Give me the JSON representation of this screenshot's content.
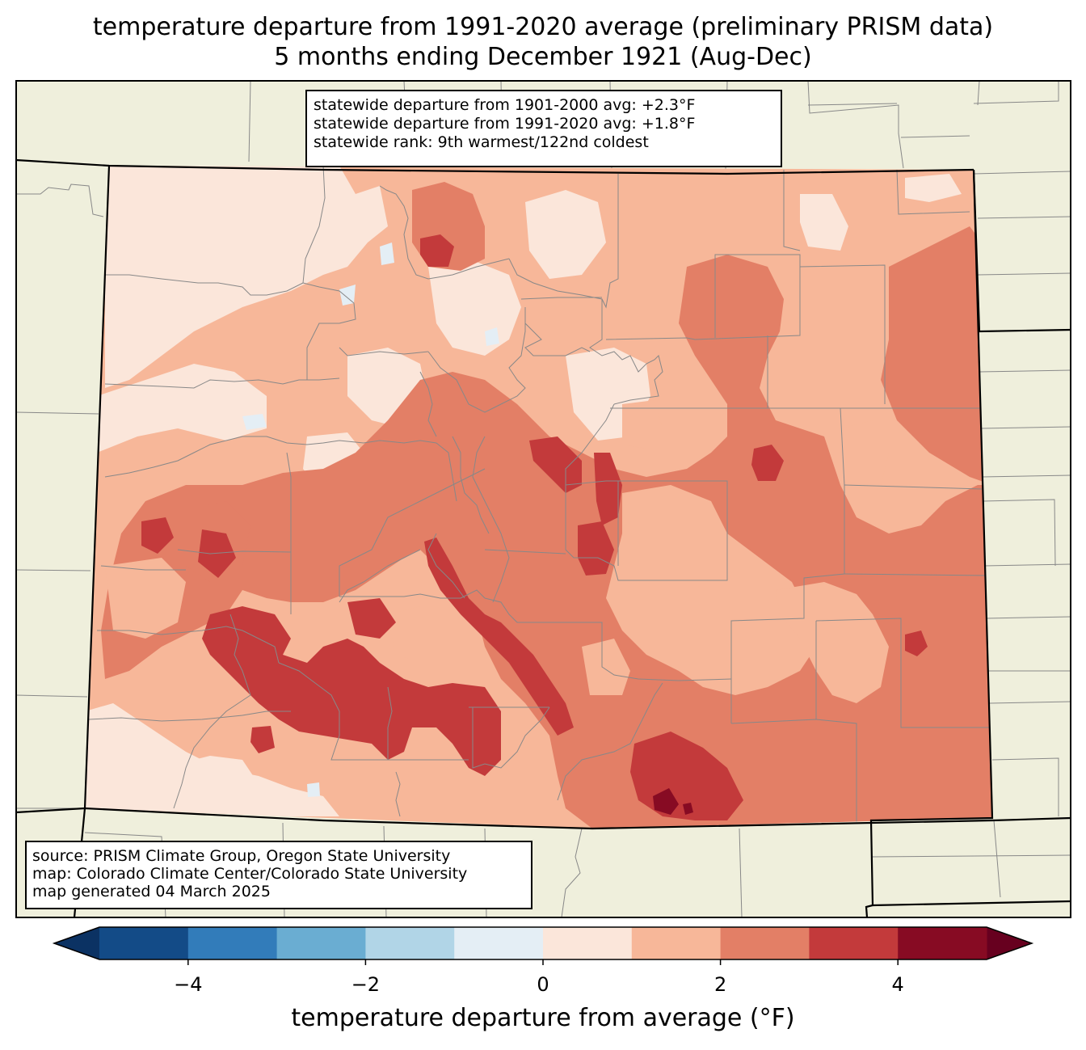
{
  "title": {
    "line1": "temperature departure from 1991-2020 average (preliminary PRISM data)",
    "line2": "5 months ending December 1921 (Aug-Dec)"
  },
  "stats_box": {
    "line1": "statewide departure from 1901-2000 avg: +2.3°F",
    "line2": "statewide departure from 1991-2020 avg: +1.8°F",
    "line3": "statewide rank: 9th warmest/122nd coldest"
  },
  "source_box": {
    "line1": "source: PRISM Climate Group, Oregon State University",
    "line2": "map: Colorado Climate Center/Colorado State University",
    "line3": "map generated 04 March 2025"
  },
  "colorbar": {
    "label": "temperature departure from average (°F)",
    "ticks": [
      "−4",
      "−2",
      "0",
      "2",
      "4"
    ],
    "tick_values": [
      -4,
      -2,
      0,
      2,
      4
    ],
    "range": [
      -5,
      5
    ],
    "bins": [
      {
        "from": -5,
        "to": -4,
        "color": "#134b87"
      },
      {
        "from": -4,
        "to": -3,
        "color": "#327cba"
      },
      {
        "from": -3,
        "to": -2,
        "color": "#6aadd2"
      },
      {
        "from": -2,
        "to": -1,
        "color": "#b1d5e7"
      },
      {
        "from": -1,
        "to": 0,
        "color": "#e4eef5"
      },
      {
        "from": 0,
        "to": 1,
        "color": "#fbe6da"
      },
      {
        "from": 1,
        "to": 2,
        "color": "#f7b799"
      },
      {
        "from": 2,
        "to": 3,
        "color": "#e37f66"
      },
      {
        "from": 3,
        "to": 4,
        "color": "#c33a3b"
      },
      {
        "from": 4,
        "to": 5,
        "color": "#870b23"
      }
    ],
    "under_color": "#0b3263",
    "over_color": "#67001f"
  },
  "colors": {
    "land_background": "#efefdc",
    "county_lines": "#888888",
    "state_lines": "#000000"
  }
}
